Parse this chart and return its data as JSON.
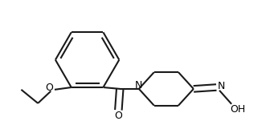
{
  "bg_color": "#ffffff",
  "line_color": "#1a1a1a",
  "line_width": 1.5,
  "figsize": [
    3.41,
    1.51
  ],
  "dpi": 100,
  "xlim": [
    0,
    3.41
  ],
  "ylim": [
    0,
    1.51
  ]
}
